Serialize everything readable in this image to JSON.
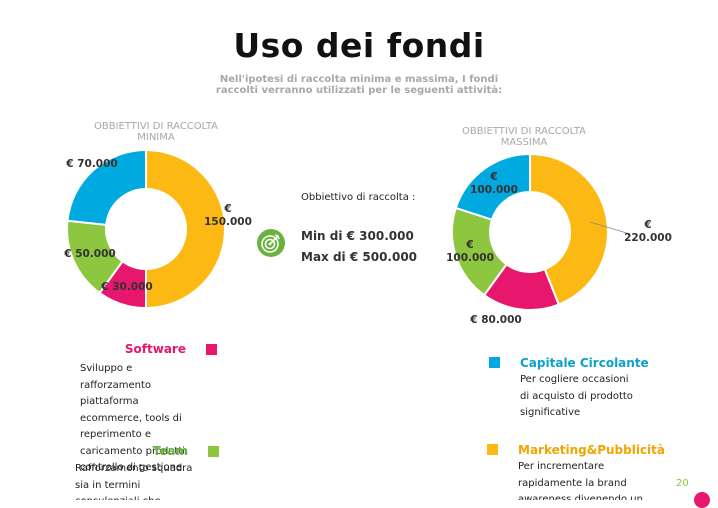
{
  "title": "Uso dei fondi",
  "subtitle": "Nell'ipotesi di raccolta minima e massima, I fondi raccolti verranno utilizzati per le seguenti attività:",
  "target": {
    "caption": "Obbiettivo di raccolta :",
    "min": "Min di € 300.000",
    "max": "Max di € 500.000",
    "icon": "target-icon"
  },
  "chart_data": [
    {
      "type": "pie",
      "variant": "donut",
      "title": "OBBIETTIVI DI RACCOLTA MINIMA",
      "categories": [
        "Marketing&Pubblicità",
        "Software",
        "Team",
        "Capitale Circolante"
      ],
      "values": [
        150000,
        30000,
        50000,
        70000
      ],
      "labels": [
        "€ 150.000",
        "€ 30.000",
        "€ 50.000",
        "€ 70.000"
      ],
      "colors": [
        "#fdb913",
        "#e8176e",
        "#8dc63f",
        "#00a9e0"
      ]
    },
    {
      "type": "pie",
      "variant": "donut",
      "title": "OBBIETTIVI DI RACCOLTA MASSIMA",
      "categories": [
        "Marketing&Pubblicità",
        "Software",
        "Team",
        "Capitale Circolante"
      ],
      "values": [
        220000,
        80000,
        100000,
        100000
      ],
      "labels": [
        "€ 220.000",
        "€ 80.000",
        "€ 100.000",
        "€ 100.000"
      ],
      "colors": [
        "#fdb913",
        "#e8176e",
        "#8dc63f",
        "#00a9e0"
      ]
    }
  ],
  "legend": {
    "software": {
      "title": "Software",
      "color": "#e8176e",
      "desc": "Sviluppo e rafforzamento piattaforma ecommerce, tools di reperimento e caricamento prodotti, controllo di gestione"
    },
    "team": {
      "title": "Team",
      "color": "#8dc63f",
      "desc": "Rafforzamento squadra sia in termini consulenziali che"
    },
    "capitale": {
      "title": "Capitale Circolante",
      "color": "#00a9e0",
      "desc": "Per cogliere occasioni di acquisto di prodotto significative"
    },
    "marketing": {
      "title": "Marketing&Pubblicità",
      "color": "#fdb913",
      "desc": "Per incrementare rapidamente la brand awareness divenendo un"
    }
  },
  "page_number": "20"
}
